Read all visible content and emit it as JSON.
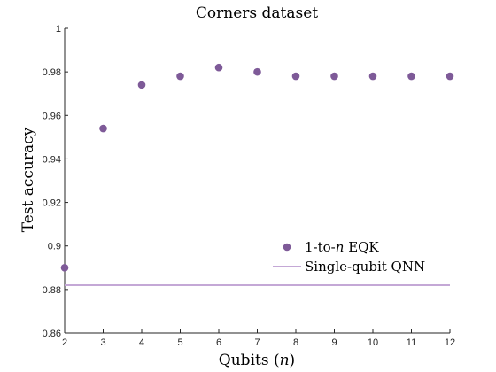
{
  "chart_data": {
    "type": "scatter",
    "title": "Corners dataset",
    "xlabel": "Qubits (n)",
    "ylabel": "Test accuracy",
    "xlim": [
      2,
      12
    ],
    "ylim": [
      0.86,
      1.0
    ],
    "xticks": [
      "2",
      "3",
      "4",
      "5",
      "6",
      "7",
      "8",
      "9",
      "10",
      "11",
      "12"
    ],
    "yticks": [
      "0.86",
      "0.88",
      "0.9",
      "0.92",
      "0.94",
      "0.96",
      "0.98",
      "1"
    ],
    "grid": false,
    "legend_position": "bottom-right",
    "series": [
      {
        "name": "1-to-n EQK",
        "kind": "scatter",
        "color": "#7e5a98",
        "x": [
          2,
          3,
          4,
          5,
          6,
          7,
          8,
          9,
          10,
          11,
          12
        ],
        "y": [
          0.89,
          0.954,
          0.974,
          0.978,
          0.982,
          0.98,
          0.978,
          0.978,
          0.978,
          0.978,
          0.978
        ]
      },
      {
        "name": "Single-qubit QNN",
        "kind": "hline",
        "color": "#c4a8d6",
        "y": 0.882
      }
    ]
  }
}
